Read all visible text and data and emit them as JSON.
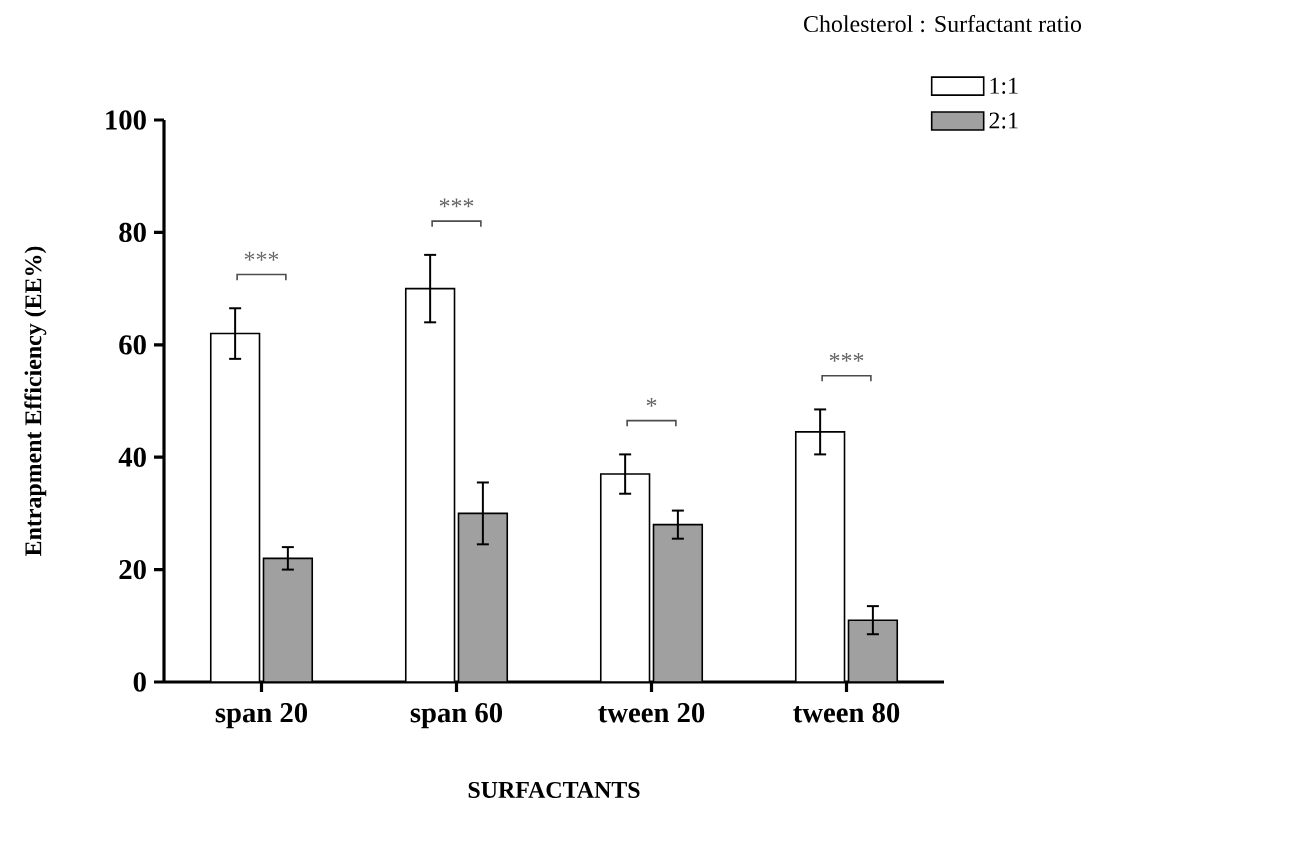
{
  "chart_data": {
    "type": "bar",
    "xlabel": "SURFACTANTS",
    "ylabel": "Entrapment Efficiency (EE%)",
    "legend_title": "Cholesterol : Surfactant  ratio",
    "legend": "top right",
    "categories": [
      "span 20",
      "span 60",
      "tween 20",
      "tween 80"
    ],
    "series": [
      {
        "name": "1:1",
        "color": "#ffffff",
        "values": [
          62,
          70,
          37,
          44.5
        ],
        "errors": [
          4.5,
          6,
          3.5,
          4
        ]
      },
      {
        "name": "2:1",
        "color": "#a0a0a0",
        "values": [
          22,
          30,
          28,
          11
        ],
        "errors": [
          2,
          5.5,
          2.5,
          2.5
        ]
      }
    ],
    "ylim": [
      0,
      100
    ],
    "yticks": [
      0,
      20,
      40,
      60,
      80,
      100
    ],
    "annotations": [
      "***",
      "***",
      "*",
      "***"
    ]
  }
}
